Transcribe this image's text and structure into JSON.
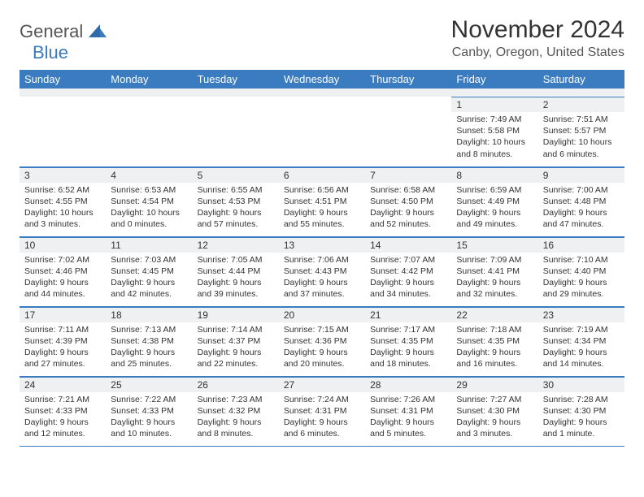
{
  "logo": {
    "general": "General",
    "blue": "Blue"
  },
  "title": "November 2024",
  "subtitle": "Canby, Oregon, United States",
  "colors": {
    "header_bg": "#3b7bbf",
    "header_text": "#ffffff",
    "daynum_bg": "#eef0f2",
    "border": "#3b7bbf",
    "text": "#333333",
    "logo_gray": "#555555",
    "logo_blue": "#3b7bbf"
  },
  "dayNames": [
    "Sunday",
    "Monday",
    "Tuesday",
    "Wednesday",
    "Thursday",
    "Friday",
    "Saturday"
  ],
  "weeks": [
    [
      null,
      null,
      null,
      null,
      null,
      {
        "n": "1",
        "sunrise": "7:49 AM",
        "sunset": "5:58 PM",
        "daylight": "10 hours and 8 minutes."
      },
      {
        "n": "2",
        "sunrise": "7:51 AM",
        "sunset": "5:57 PM",
        "daylight": "10 hours and 6 minutes."
      }
    ],
    [
      {
        "n": "3",
        "sunrise": "6:52 AM",
        "sunset": "4:55 PM",
        "daylight": "10 hours and 3 minutes."
      },
      {
        "n": "4",
        "sunrise": "6:53 AM",
        "sunset": "4:54 PM",
        "daylight": "10 hours and 0 minutes."
      },
      {
        "n": "5",
        "sunrise": "6:55 AM",
        "sunset": "4:53 PM",
        "daylight": "9 hours and 57 minutes."
      },
      {
        "n": "6",
        "sunrise": "6:56 AM",
        "sunset": "4:51 PM",
        "daylight": "9 hours and 55 minutes."
      },
      {
        "n": "7",
        "sunrise": "6:58 AM",
        "sunset": "4:50 PM",
        "daylight": "9 hours and 52 minutes."
      },
      {
        "n": "8",
        "sunrise": "6:59 AM",
        "sunset": "4:49 PM",
        "daylight": "9 hours and 49 minutes."
      },
      {
        "n": "9",
        "sunrise": "7:00 AM",
        "sunset": "4:48 PM",
        "daylight": "9 hours and 47 minutes."
      }
    ],
    [
      {
        "n": "10",
        "sunrise": "7:02 AM",
        "sunset": "4:46 PM",
        "daylight": "9 hours and 44 minutes."
      },
      {
        "n": "11",
        "sunrise": "7:03 AM",
        "sunset": "4:45 PM",
        "daylight": "9 hours and 42 minutes."
      },
      {
        "n": "12",
        "sunrise": "7:05 AM",
        "sunset": "4:44 PM",
        "daylight": "9 hours and 39 minutes."
      },
      {
        "n": "13",
        "sunrise": "7:06 AM",
        "sunset": "4:43 PM",
        "daylight": "9 hours and 37 minutes."
      },
      {
        "n": "14",
        "sunrise": "7:07 AM",
        "sunset": "4:42 PM",
        "daylight": "9 hours and 34 minutes."
      },
      {
        "n": "15",
        "sunrise": "7:09 AM",
        "sunset": "4:41 PM",
        "daylight": "9 hours and 32 minutes."
      },
      {
        "n": "16",
        "sunrise": "7:10 AM",
        "sunset": "4:40 PM",
        "daylight": "9 hours and 29 minutes."
      }
    ],
    [
      {
        "n": "17",
        "sunrise": "7:11 AM",
        "sunset": "4:39 PM",
        "daylight": "9 hours and 27 minutes."
      },
      {
        "n": "18",
        "sunrise": "7:13 AM",
        "sunset": "4:38 PM",
        "daylight": "9 hours and 25 minutes."
      },
      {
        "n": "19",
        "sunrise": "7:14 AM",
        "sunset": "4:37 PM",
        "daylight": "9 hours and 22 minutes."
      },
      {
        "n": "20",
        "sunrise": "7:15 AM",
        "sunset": "4:36 PM",
        "daylight": "9 hours and 20 minutes."
      },
      {
        "n": "21",
        "sunrise": "7:17 AM",
        "sunset": "4:35 PM",
        "daylight": "9 hours and 18 minutes."
      },
      {
        "n": "22",
        "sunrise": "7:18 AM",
        "sunset": "4:35 PM",
        "daylight": "9 hours and 16 minutes."
      },
      {
        "n": "23",
        "sunrise": "7:19 AM",
        "sunset": "4:34 PM",
        "daylight": "9 hours and 14 minutes."
      }
    ],
    [
      {
        "n": "24",
        "sunrise": "7:21 AM",
        "sunset": "4:33 PM",
        "daylight": "9 hours and 12 minutes."
      },
      {
        "n": "25",
        "sunrise": "7:22 AM",
        "sunset": "4:33 PM",
        "daylight": "9 hours and 10 minutes."
      },
      {
        "n": "26",
        "sunrise": "7:23 AM",
        "sunset": "4:32 PM",
        "daylight": "9 hours and 8 minutes."
      },
      {
        "n": "27",
        "sunrise": "7:24 AM",
        "sunset": "4:31 PM",
        "daylight": "9 hours and 6 minutes."
      },
      {
        "n": "28",
        "sunrise": "7:26 AM",
        "sunset": "4:31 PM",
        "daylight": "9 hours and 5 minutes."
      },
      {
        "n": "29",
        "sunrise": "7:27 AM",
        "sunset": "4:30 PM",
        "daylight": "9 hours and 3 minutes."
      },
      {
        "n": "30",
        "sunrise": "7:28 AM",
        "sunset": "4:30 PM",
        "daylight": "9 hours and 1 minute."
      }
    ]
  ],
  "labels": {
    "sunrise": "Sunrise:",
    "sunset": "Sunset:",
    "daylight": "Daylight:"
  }
}
